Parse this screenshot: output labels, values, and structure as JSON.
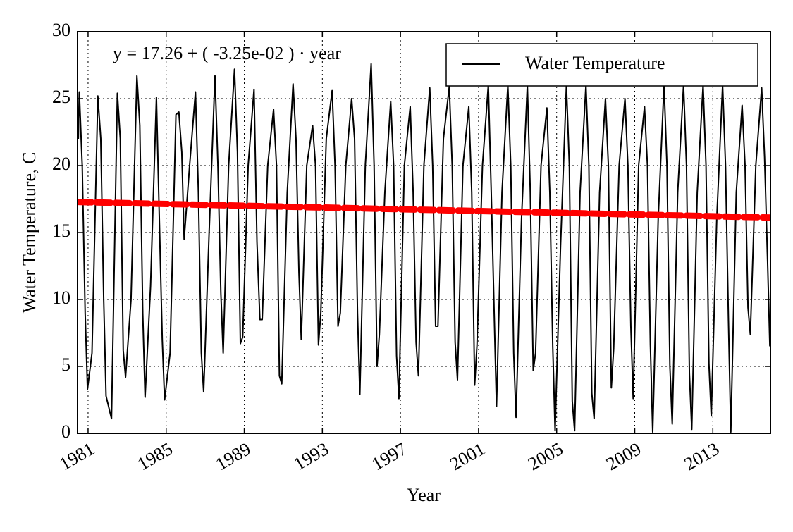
{
  "chart_data": {
    "type": "line",
    "annotation": "y = 17.26 + ( -3.25e-02 ) · year",
    "xlabel": "Year",
    "ylabel": "Water Temperature, C",
    "xlim": [
      1980.46,
      2015.95
    ],
    "ylim": [
      0,
      30
    ],
    "xticks": [
      1981,
      1985,
      1989,
      1993,
      1997,
      2001,
      2005,
      2009,
      2013
    ],
    "yticks": [
      0,
      5,
      10,
      15,
      20,
      25,
      30
    ],
    "grid": true,
    "legend": "upper right",
    "series": [
      {
        "name": "Water Temperature",
        "color": "#000000",
        "style": "solid",
        "x": [
          1980.5,
          1980.55,
          1980.7,
          1980.85,
          1980.97,
          1981.2,
          1981.5,
          1981.65,
          1981.8,
          1981.92,
          1982.2,
          1982.5,
          1982.65,
          1982.8,
          1982.92,
          1983.2,
          1983.5,
          1983.65,
          1983.8,
          1983.92,
          1984.2,
          1984.5,
          1984.65,
          1984.8,
          1984.92,
          1985.2,
          1985.5,
          1985.65,
          1985.8,
          1985.92,
          1986.2,
          1986.5,
          1986.65,
          1986.8,
          1986.92,
          1987.2,
          1987.5,
          1987.65,
          1987.8,
          1987.92,
          1988.2,
          1988.5,
          1988.65,
          1988.8,
          1988.92,
          1989.2,
          1989.5,
          1989.65,
          1989.8,
          1989.92,
          1990.2,
          1990.5,
          1990.65,
          1990.8,
          1990.92,
          1991.2,
          1991.5,
          1991.65,
          1991.8,
          1991.92,
          1992.2,
          1992.5,
          1992.65,
          1992.8,
          1992.92,
          1993.2,
          1993.5,
          1993.65,
          1993.8,
          1993.92,
          1994.2,
          1994.5,
          1994.65,
          1994.8,
          1994.92,
          1995.2,
          1995.5,
          1995.65,
          1995.8,
          1995.92,
          1996.2,
          1996.5,
          1996.65,
          1996.8,
          1996.92,
          1997.2,
          1997.5,
          1997.65,
          1997.8,
          1997.92,
          1998.2,
          1998.5,
          1998.65,
          1998.8,
          1998.92,
          1999.2,
          1999.5,
          1999.65,
          1999.8,
          1999.92,
          2000.2,
          2000.5,
          2000.65,
          2000.8,
          2000.92,
          2001.2,
          2001.5,
          2001.65,
          2001.8,
          2001.92,
          2002.2,
          2002.5,
          2002.65,
          2002.8,
          2002.92,
          2003.2,
          2003.5,
          2003.65,
          2003.8,
          2003.92,
          2004.2,
          2004.5,
          2004.65,
          2004.8,
          2004.92,
          2005.2,
          2005.5,
          2005.65,
          2005.8,
          2005.92,
          2006.2,
          2006.5,
          2006.65,
          2006.8,
          2006.92,
          2007.2,
          2007.5,
          2007.65,
          2007.8,
          2007.92,
          2008.2,
          2008.5,
          2008.65,
          2008.8,
          2008.92,
          2009.2,
          2009.5,
          2009.65,
          2009.8,
          2009.92,
          2010.2,
          2010.5,
          2010.65,
          2010.8,
          2010.92,
          2011.2,
          2011.5,
          2011.65,
          2011.8,
          2011.92,
          2012.2,
          2012.5,
          2012.65,
          2012.8,
          2012.92,
          2013.2,
          2013.5,
          2013.65,
          2013.8,
          2013.92,
          2014.2,
          2014.5,
          2014.65,
          2014.8,
          2014.92,
          2015.2,
          2015.5,
          2015.65,
          2015.8,
          2015.92
        ],
        "values": [
          22,
          25.5,
          20,
          9,
          3.3,
          6,
          25.2,
          22,
          10,
          2.8,
          1.1,
          25.4,
          22,
          6.2,
          4.2,
          10,
          26.7,
          23,
          9,
          2.7,
          11,
          25.1,
          16,
          7,
          2.5,
          6,
          23.8,
          24,
          21,
          14.5,
          20,
          25.5,
          18,
          6,
          3.1,
          15,
          26.7,
          20,
          10.5,
          6,
          20,
          27.2,
          21,
          6.7,
          7.2,
          20,
          25.7,
          14.3,
          8.5,
          8.5,
          20,
          24.2,
          20,
          4.3,
          3.7,
          18,
          26.1,
          22,
          12,
          7,
          20,
          23,
          20,
          6.6,
          9,
          22,
          25.6,
          20,
          8,
          9,
          20,
          25,
          22,
          9,
          2.9,
          20,
          27.6,
          20,
          5,
          7.4,
          18,
          24.8,
          20,
          5.8,
          2.6,
          20,
          24.4,
          18,
          6.8,
          4.3,
          20,
          25.8,
          20,
          8,
          8,
          22,
          25.9,
          20,
          6.8,
          4,
          20,
          24.4,
          18,
          3.6,
          6.6,
          20,
          26,
          18,
          9,
          2,
          18,
          26,
          20,
          6,
          1.2,
          16,
          26,
          18,
          4.7,
          6,
          20,
          24.3,
          18,
          6.5,
          0.2,
          14,
          26,
          20,
          2.4,
          0.2,
          18,
          26,
          20,
          3,
          1.1,
          18,
          25,
          20,
          3.4,
          6.3,
          20,
          25,
          20,
          8,
          2.6,
          20,
          24.4,
          20,
          6.6,
          0.1,
          16,
          26,
          20,
          5,
          0.7,
          18,
          26,
          20,
          4.5,
          0.3,
          18,
          26,
          20,
          5.2,
          1.3,
          16,
          26,
          20,
          8.4,
          0.1,
          18,
          24.5,
          20,
          9.4,
          7.4,
          20,
          25.8,
          20.6,
          13,
          6.5
        ]
      },
      {
        "color": "#ff0000",
        "style": "dashed",
        "x": [
          1980.46,
          2015.95
        ],
        "values": [
          17.28,
          16.12
        ]
      }
    ]
  }
}
